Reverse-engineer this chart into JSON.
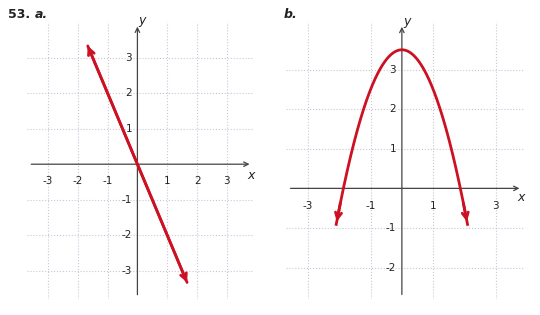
{
  "line_slope": -2,
  "line_intercept": 0,
  "line_x_start": -1.7,
  "line_x_end": 1.7,
  "line_color": "#cc1122",
  "parabola_a": -1,
  "parabola_c": 3.5,
  "parabola_x_start": -2.1,
  "parabola_x_end": 2.1,
  "parabola_color": "#cc1122",
  "xlim_a": [
    -3.7,
    3.9
  ],
  "ylim_a": [
    -3.8,
    4.0
  ],
  "xlim_b": [
    -3.7,
    3.9
  ],
  "ylim_b": [
    -2.8,
    4.2
  ],
  "xticks_a": [
    -3,
    -2,
    -1,
    1,
    2,
    3
  ],
  "yticks_a": [
    -3,
    -2,
    -1,
    1,
    2,
    3
  ],
  "xticks_b": [
    -3,
    -1,
    1,
    3
  ],
  "yticks_b": [
    -2,
    -1,
    1,
    2,
    3
  ],
  "tick_fontsize": 7.5,
  "label_fontsize": 9,
  "grid_color": "#9999bb",
  "grid_alpha": 0.55,
  "bg_color": "#ffffff",
  "axis_color": "#444444",
  "text_color": "#222222"
}
